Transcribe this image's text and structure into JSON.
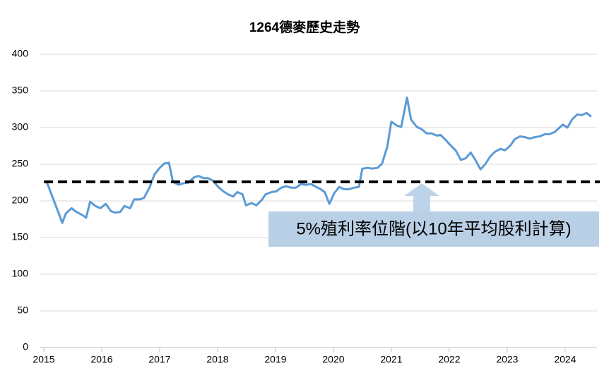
{
  "chart_data": {
    "type": "line",
    "title": "1264德麥歷史走勢",
    "x": [
      2015.05,
      2015.2,
      2015.32,
      2015.38,
      2015.48,
      2015.56,
      2015.66,
      2015.73,
      2015.8,
      2015.89,
      2015.98,
      2016.07,
      2016.16,
      2016.23,
      2016.32,
      2016.39,
      2016.49,
      2016.56,
      2016.65,
      2016.73,
      2016.83,
      2016.91,
      2017.0,
      2017.08,
      2017.16,
      2017.23,
      2017.33,
      2017.41,
      2017.5,
      2017.59,
      2017.67,
      2017.76,
      2017.84,
      2017.93,
      2018.01,
      2018.1,
      2018.18,
      2018.27,
      2018.34,
      2018.43,
      2018.49,
      2018.59,
      2018.67,
      2018.76,
      2018.83,
      2018.93,
      2019.01,
      2019.1,
      2019.18,
      2019.27,
      2019.35,
      2019.44,
      2019.52,
      2019.61,
      2019.7,
      2019.78,
      2019.85,
      2019.93,
      2020.01,
      2020.1,
      2020.18,
      2020.27,
      2020.35,
      2020.44,
      2020.5,
      2020.59,
      2020.67,
      2020.76,
      2020.84,
      2020.93,
      2021.0,
      2021.09,
      2021.17,
      2021.27,
      2021.34,
      2021.44,
      2021.52,
      2021.61,
      2021.7,
      2021.78,
      2021.85,
      2021.94,
      2022.02,
      2022.11,
      2022.2,
      2022.28,
      2022.37,
      2022.45,
      2022.54,
      2022.62,
      2022.71,
      2022.79,
      2022.88,
      2022.96,
      2023.05,
      2023.13,
      2023.22,
      2023.3,
      2023.39,
      2023.48,
      2023.56,
      2023.65,
      2023.73,
      2023.82,
      2023.89,
      2023.96,
      2024.04,
      2024.12,
      2024.21,
      2024.29,
      2024.37,
      2024.45
    ],
    "values": [
      226,
      195,
      170,
      183,
      190,
      185,
      181,
      177,
      199,
      193,
      190,
      196,
      186,
      184,
      185,
      193,
      190,
      202,
      202,
      204,
      219,
      236,
      245,
      251,
      252,
      226,
      222,
      224,
      225,
      232,
      234,
      231,
      231,
      227,
      219,
      213,
      209,
      206,
      212,
      209,
      194,
      197,
      194,
      201,
      209,
      212,
      213,
      218,
      220,
      218,
      218,
      223,
      222,
      223,
      219,
      216,
      212,
      196,
      210,
      219,
      216,
      216,
      218,
      219,
      244,
      245,
      244,
      245,
      251,
      274,
      308,
      303,
      301,
      341,
      311,
      301,
      298,
      292,
      292,
      289,
      290,
      283,
      276,
      269,
      256,
      258,
      266,
      256,
      243,
      250,
      261,
      267,
      271,
      269,
      275,
      284,
      288,
      287,
      285,
      287,
      288,
      291,
      291,
      294,
      299,
      304,
      300,
      311,
      318,
      317,
      320,
      315
    ],
    "color": "#5b9bd5",
    "reference_line": 226,
    "annotation": "5%殖利率位階(以10年平均股利計算)",
    "xlim": [
      2015,
      2024.55
    ],
    "xticks": [
      2015,
      2016,
      2017,
      2018,
      2019,
      2020,
      2021,
      2022,
      2023,
      2024
    ],
    "ylim": [
      0,
      400
    ],
    "yticks": [
      0,
      50,
      100,
      150,
      200,
      250,
      300,
      350,
      400
    ],
    "grid": true
  }
}
